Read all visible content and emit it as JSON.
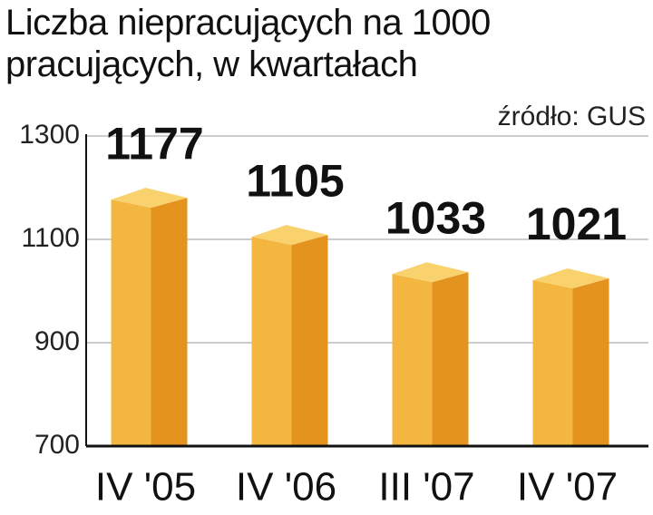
{
  "chart_data": {
    "type": "bar3d",
    "title": "Liczba niepracujących na 1000 pracujących, w kwartałach",
    "source": "źródło: GUS",
    "categories": [
      "IV '05",
      "IV '06",
      "III '07",
      "IV '07"
    ],
    "values": [
      1177,
      1105,
      1033,
      1021
    ],
    "colors": {
      "front": "#f3b640",
      "side": "#e4931f",
      "top": "#f9d26e"
    },
    "ylim": [
      700,
      1300
    ],
    "yticks": [
      700,
      900,
      1100,
      1300
    ],
    "grid": true
  }
}
